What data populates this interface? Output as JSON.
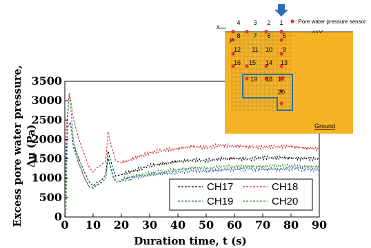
{
  "chart_data": {
    "type": "line",
    "xlabel": "Duration time, t (s)",
    "ylabel_line1": "Excess pore water pressure,",
    "ylabel_line2": "Δu (Pa)",
    "xlim": [
      0,
      90
    ],
    "ylim": [
      0,
      3500
    ],
    "xticks": [
      0,
      10,
      20,
      30,
      40,
      50,
      60,
      70,
      80,
      90
    ],
    "yticks": [
      0,
      500,
      1000,
      1500,
      2000,
      2500,
      3000,
      3500
    ],
    "grid": false,
    "legend_placement": "bottom-right",
    "series": [
      {
        "name": "CH17",
        "color": "#000000",
        "points": [
          [
            0,
            0
          ],
          [
            0.5,
            1600
          ],
          [
            1,
            2300
          ],
          [
            2,
            2450
          ],
          [
            3,
            1850
          ],
          [
            5,
            1500
          ],
          [
            7,
            1150
          ],
          [
            8.5,
            920
          ],
          [
            10,
            800
          ],
          [
            11,
            880
          ],
          [
            13,
            950
          ],
          [
            14.5,
            1100
          ],
          [
            15.3,
            1700
          ],
          [
            16,
            1500
          ],
          [
            17,
            1250
          ],
          [
            18,
            1050
          ],
          [
            20,
            1100
          ],
          [
            25,
            1200
          ],
          [
            30,
            1320
          ],
          [
            35,
            1380
          ],
          [
            40,
            1430
          ],
          [
            45,
            1470
          ],
          [
            50,
            1450
          ],
          [
            55,
            1500
          ],
          [
            60,
            1510
          ],
          [
            65,
            1490
          ],
          [
            70,
            1530
          ],
          [
            75,
            1530
          ],
          [
            80,
            1520
          ],
          [
            85,
            1510
          ],
          [
            90,
            1500
          ]
        ]
      },
      {
        "name": "CH18",
        "color": "#d62020",
        "points": [
          [
            0,
            0
          ],
          [
            0.5,
            2200
          ],
          [
            1.5,
            3200
          ],
          [
            2,
            3050
          ],
          [
            3,
            2550
          ],
          [
            5,
            2000
          ],
          [
            7,
            1600
          ],
          [
            8.5,
            1300
          ],
          [
            10,
            1150
          ],
          [
            11,
            1250
          ],
          [
            13,
            1350
          ],
          [
            14.5,
            1450
          ],
          [
            15.3,
            2200
          ],
          [
            16,
            1950
          ],
          [
            17,
            1700
          ],
          [
            18,
            1450
          ],
          [
            20,
            1400
          ],
          [
            25,
            1530
          ],
          [
            30,
            1650
          ],
          [
            35,
            1720
          ],
          [
            40,
            1760
          ],
          [
            45,
            1820
          ],
          [
            50,
            1790
          ],
          [
            55,
            1850
          ],
          [
            60,
            1830
          ],
          [
            65,
            1810
          ],
          [
            70,
            1800
          ],
          [
            75,
            1820
          ],
          [
            80,
            1820
          ],
          [
            85,
            1780
          ],
          [
            90,
            1750
          ]
        ]
      },
      {
        "name": "CH19",
        "color": "#2a5d9e",
        "points": [
          [
            0,
            0
          ],
          [
            0.5,
            1500
          ],
          [
            1,
            2300
          ],
          [
            2,
            2450
          ],
          [
            3,
            1800
          ],
          [
            5,
            1350
          ],
          [
            7,
            1000
          ],
          [
            8.5,
            800
          ],
          [
            10,
            760
          ],
          [
            11,
            820
          ],
          [
            13,
            900
          ],
          [
            14.5,
            1000
          ],
          [
            15.3,
            1500
          ],
          [
            16,
            1300
          ],
          [
            17,
            1050
          ],
          [
            18,
            900
          ],
          [
            20,
            920
          ],
          [
            25,
            1020
          ],
          [
            30,
            1080
          ],
          [
            35,
            1120
          ],
          [
            40,
            1150
          ],
          [
            45,
            1200
          ],
          [
            50,
            1180
          ],
          [
            55,
            1210
          ],
          [
            60,
            1230
          ],
          [
            65,
            1240
          ],
          [
            70,
            1230
          ],
          [
            75,
            1230
          ],
          [
            80,
            1250
          ],
          [
            85,
            1230
          ],
          [
            90,
            1220
          ]
        ]
      },
      {
        "name": "CH20",
        "color": "#2e8b3a",
        "points": [
          [
            0,
            0
          ],
          [
            0.4,
            50
          ],
          [
            1,
            2500
          ],
          [
            1.5,
            3150
          ],
          [
            2,
            2900
          ],
          [
            3,
            2000
          ],
          [
            5,
            1400
          ],
          [
            7,
            1000
          ],
          [
            8.5,
            780
          ],
          [
            10,
            740
          ],
          [
            11,
            800
          ],
          [
            13,
            880
          ],
          [
            14.5,
            1000
          ],
          [
            15.3,
            1550
          ],
          [
            16,
            1350
          ],
          [
            17,
            1100
          ],
          [
            18,
            950
          ],
          [
            20,
            960
          ],
          [
            25,
            1060
          ],
          [
            30,
            1120
          ],
          [
            35,
            1180
          ],
          [
            40,
            1220
          ],
          [
            45,
            1270
          ],
          [
            50,
            1250
          ],
          [
            55,
            1290
          ],
          [
            60,
            1300
          ],
          [
            65,
            1310
          ],
          [
            70,
            1300
          ],
          [
            75,
            1320
          ],
          [
            80,
            1320
          ],
          [
            85,
            1300
          ],
          [
            90,
            1300
          ]
        ]
      }
    ]
  },
  "inset": {
    "x_label": "x",
    "y_label": "y",
    "sensor_legend": ": Pore water pressure sensor",
    "ground_label": "Ground",
    "colors": {
      "ground": "#f5b325",
      "sensor": "#e8322c",
      "outline": "#2d6fa3",
      "arrow": "#2f6db3"
    },
    "col_numbers": [
      "4",
      "3",
      "2",
      "1"
    ],
    "row1_numbers": [
      "8",
      "7",
      "6",
      "5"
    ],
    "row2_numbers": [
      "12",
      "11",
      "10",
      "9"
    ],
    "row3_numbers": [
      "16",
      "15",
      "14",
      "13"
    ],
    "row4_numbers": [
      "19",
      "18",
      "17"
    ],
    "row5_numbers": [
      "20"
    ]
  }
}
